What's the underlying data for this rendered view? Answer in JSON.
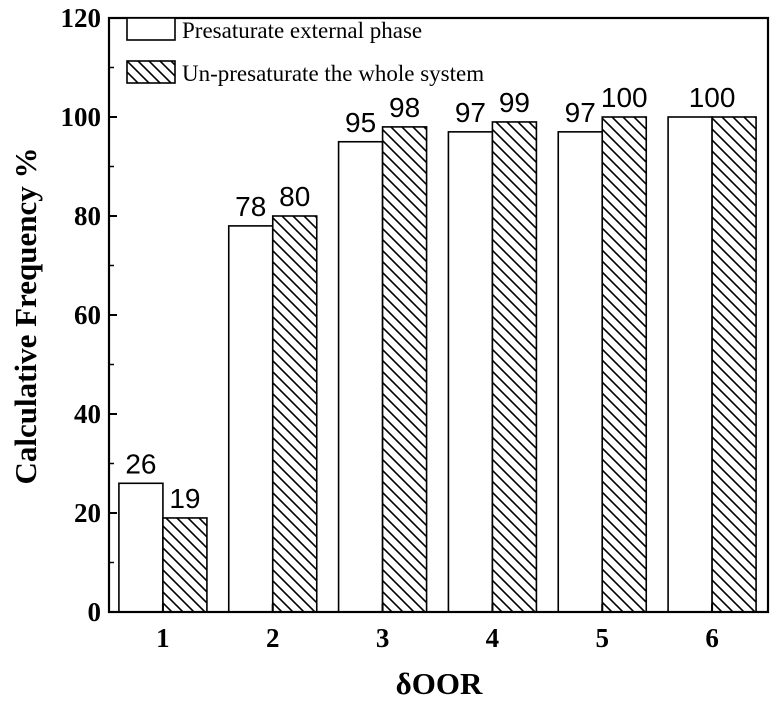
{
  "chart_data": {
    "type": "bar",
    "categories": [
      "1",
      "2",
      "3",
      "4",
      "5",
      "6"
    ],
    "series": [
      {
        "name": "Presaturate external phase",
        "values": [
          26,
          78,
          95,
          97,
          97,
          100
        ],
        "pattern": "plain"
      },
      {
        "name": "Un-presaturate the whole system",
        "values": [
          19,
          80,
          98,
          99,
          100,
          100
        ],
        "pattern": "hatched"
      }
    ],
    "data_labels": [
      [
        "26",
        "78",
        "95",
        "97",
        "97",
        "100"
      ],
      [
        "19",
        "80",
        "98",
        "99",
        "100",
        ""
      ]
    ],
    "xlabel": "δOOR",
    "ylabel": "Calculative Frequency %",
    "ylim": [
      0,
      120
    ],
    "yticks": [
      0,
      20,
      40,
      60,
      80,
      100,
      120
    ],
    "grid": false,
    "legend_position": "top-left",
    "colors": {
      "bar_fill": "#ffffff",
      "bar_stroke": "#000000",
      "hatch": "#000000"
    }
  }
}
